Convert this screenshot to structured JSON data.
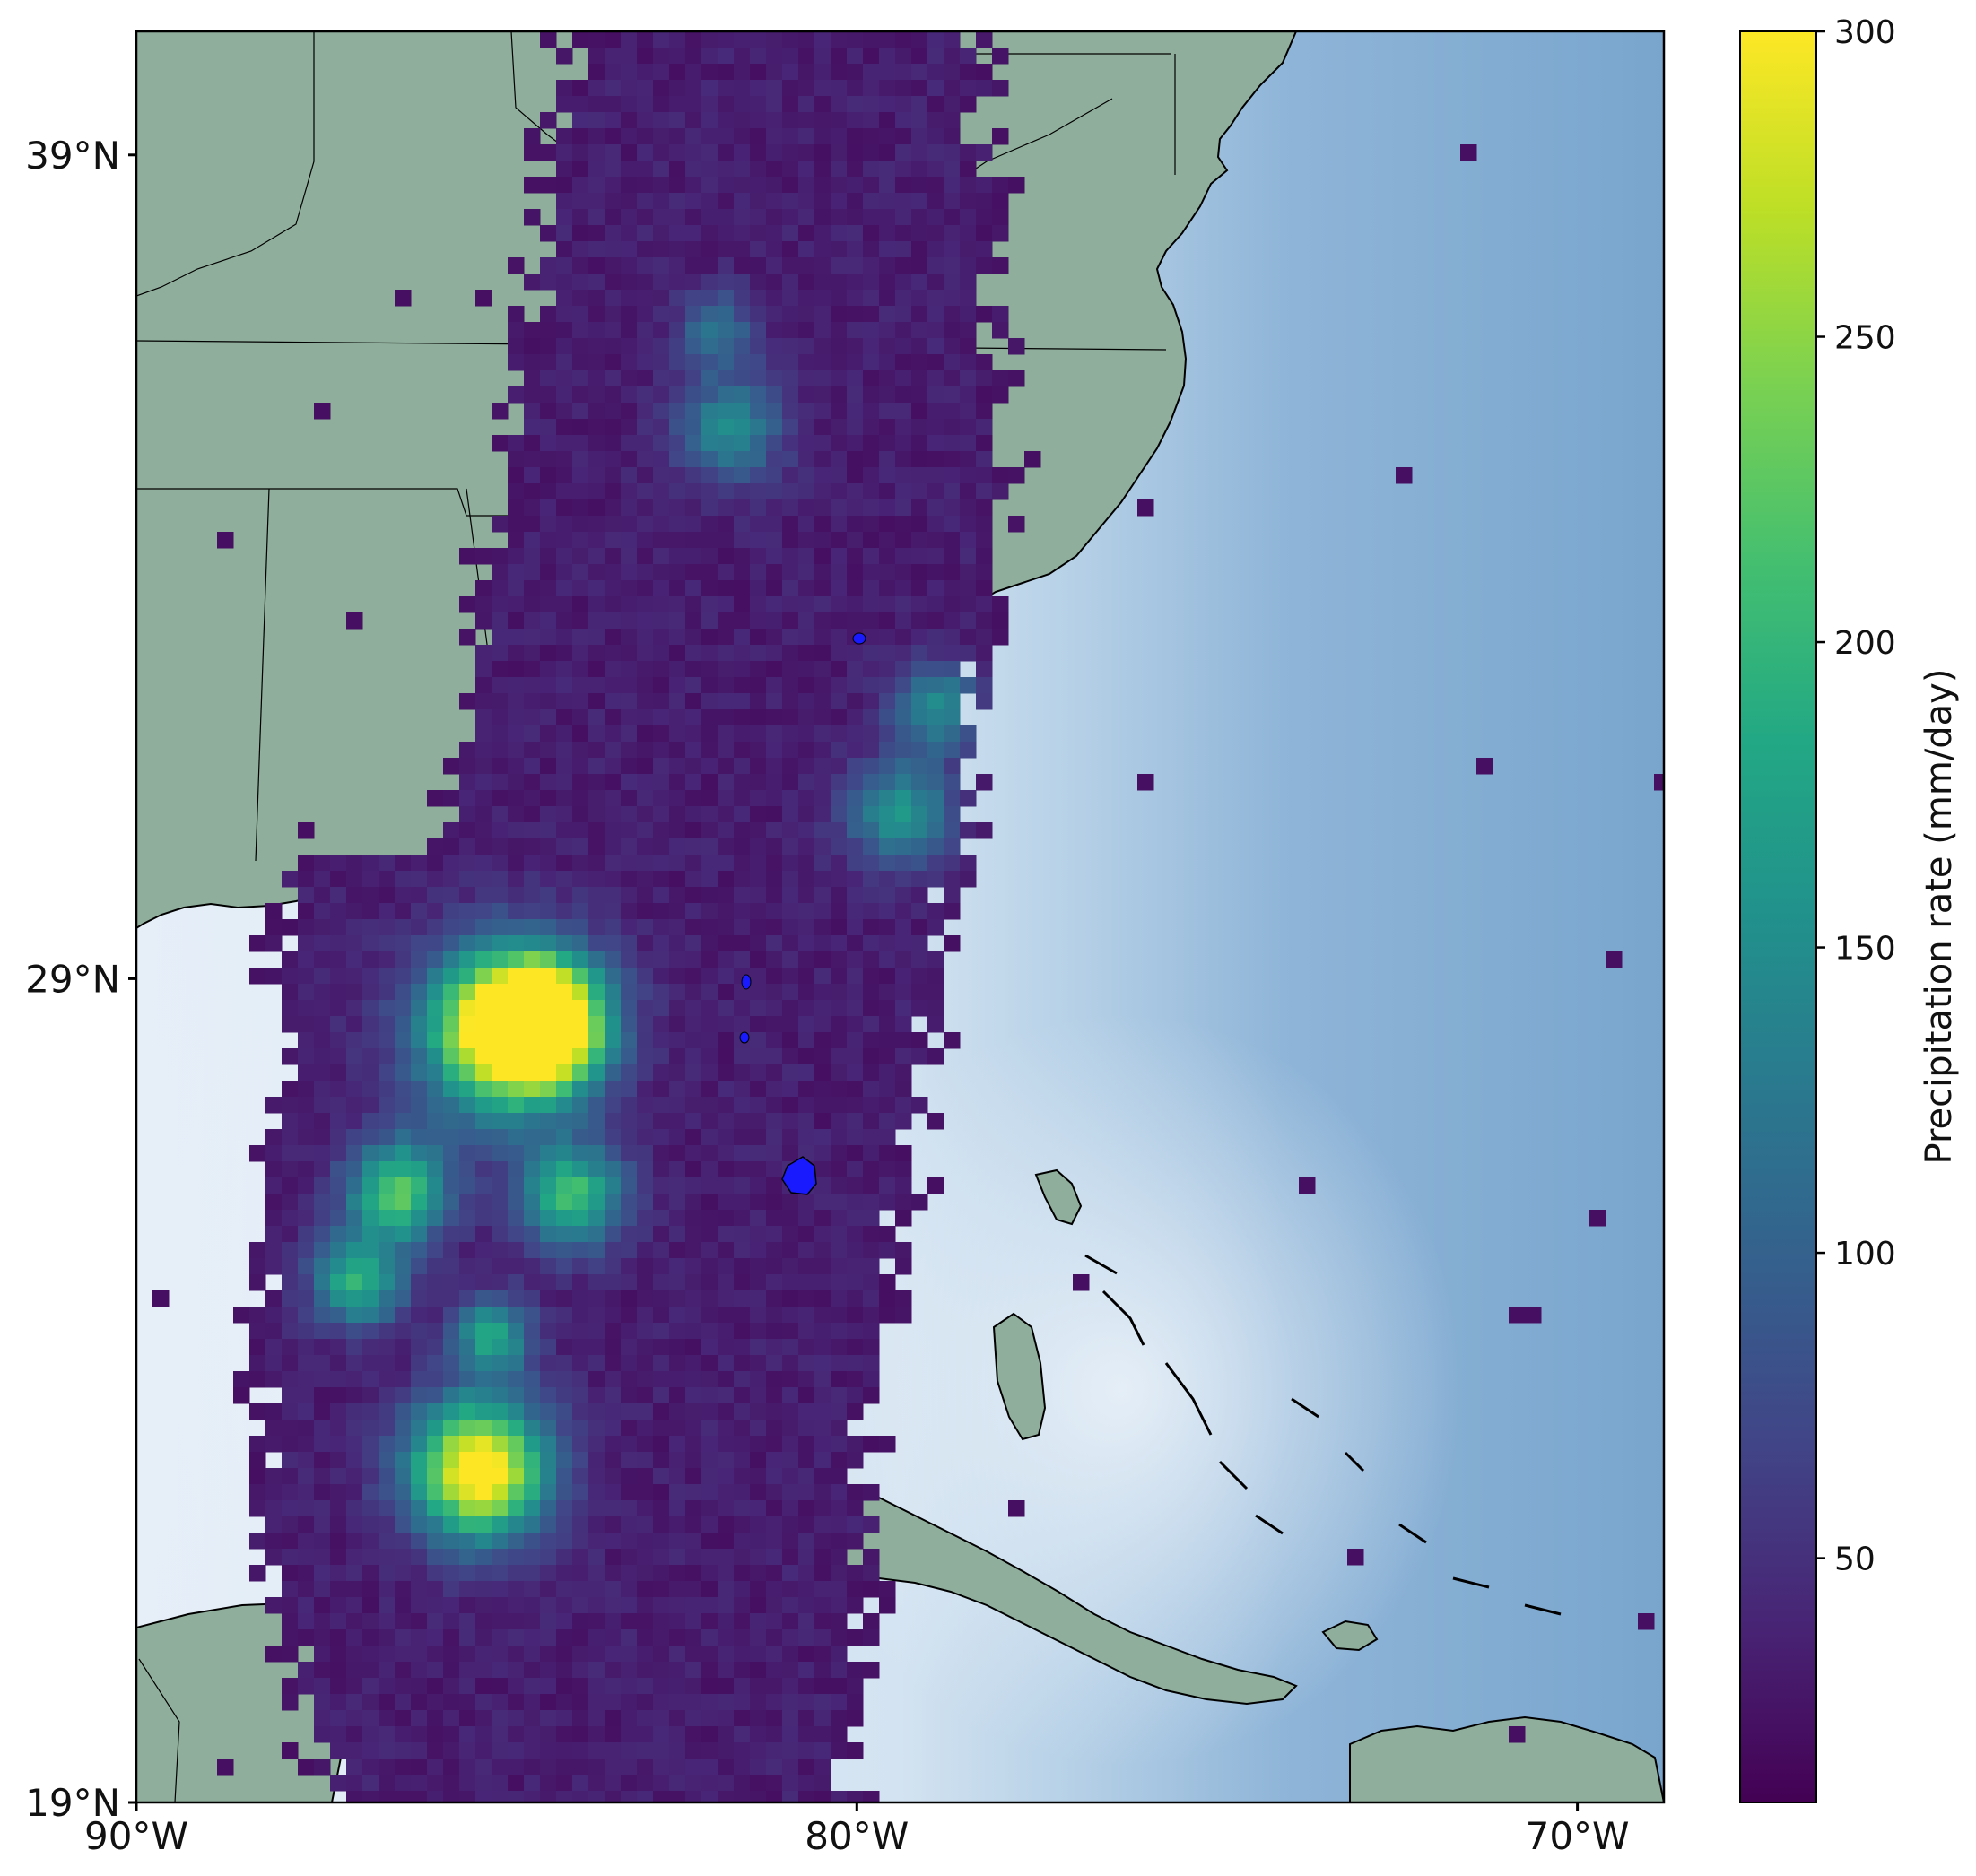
{
  "map": {
    "extent": {
      "lon_min": -90.0,
      "lon_max": -68.8,
      "lat_min": 19.0,
      "lat_max": 40.5
    },
    "lat_ticks": [
      {
        "value": 39,
        "label": "39°N"
      },
      {
        "value": 29,
        "label": "29°N"
      },
      {
        "value": 19,
        "label": "19°N"
      }
    ],
    "lon_ticks": [
      {
        "value": -90,
        "label": "90°W"
      },
      {
        "value": -80,
        "label": "80°W"
      },
      {
        "value": -70,
        "label": "70°W"
      }
    ],
    "colors": {
      "land": "#8fae9b",
      "ocean_deep": "#7aa6cc",
      "ocean_coast": "#e4eef7",
      "coastline": "#000000",
      "lake": "#1a1aff"
    }
  },
  "colorbar": {
    "label": "Precipitation rate (mm/day)",
    "range": [
      10,
      300
    ],
    "ticks": [
      {
        "value": 50,
        "label": "50"
      },
      {
        "value": 100,
        "label": "100"
      },
      {
        "value": 150,
        "label": "150"
      },
      {
        "value": 200,
        "label": "200"
      },
      {
        "value": 250,
        "label": "250"
      },
      {
        "value": 300,
        "label": "300"
      }
    ],
    "colormap": "viridis"
  }
}
